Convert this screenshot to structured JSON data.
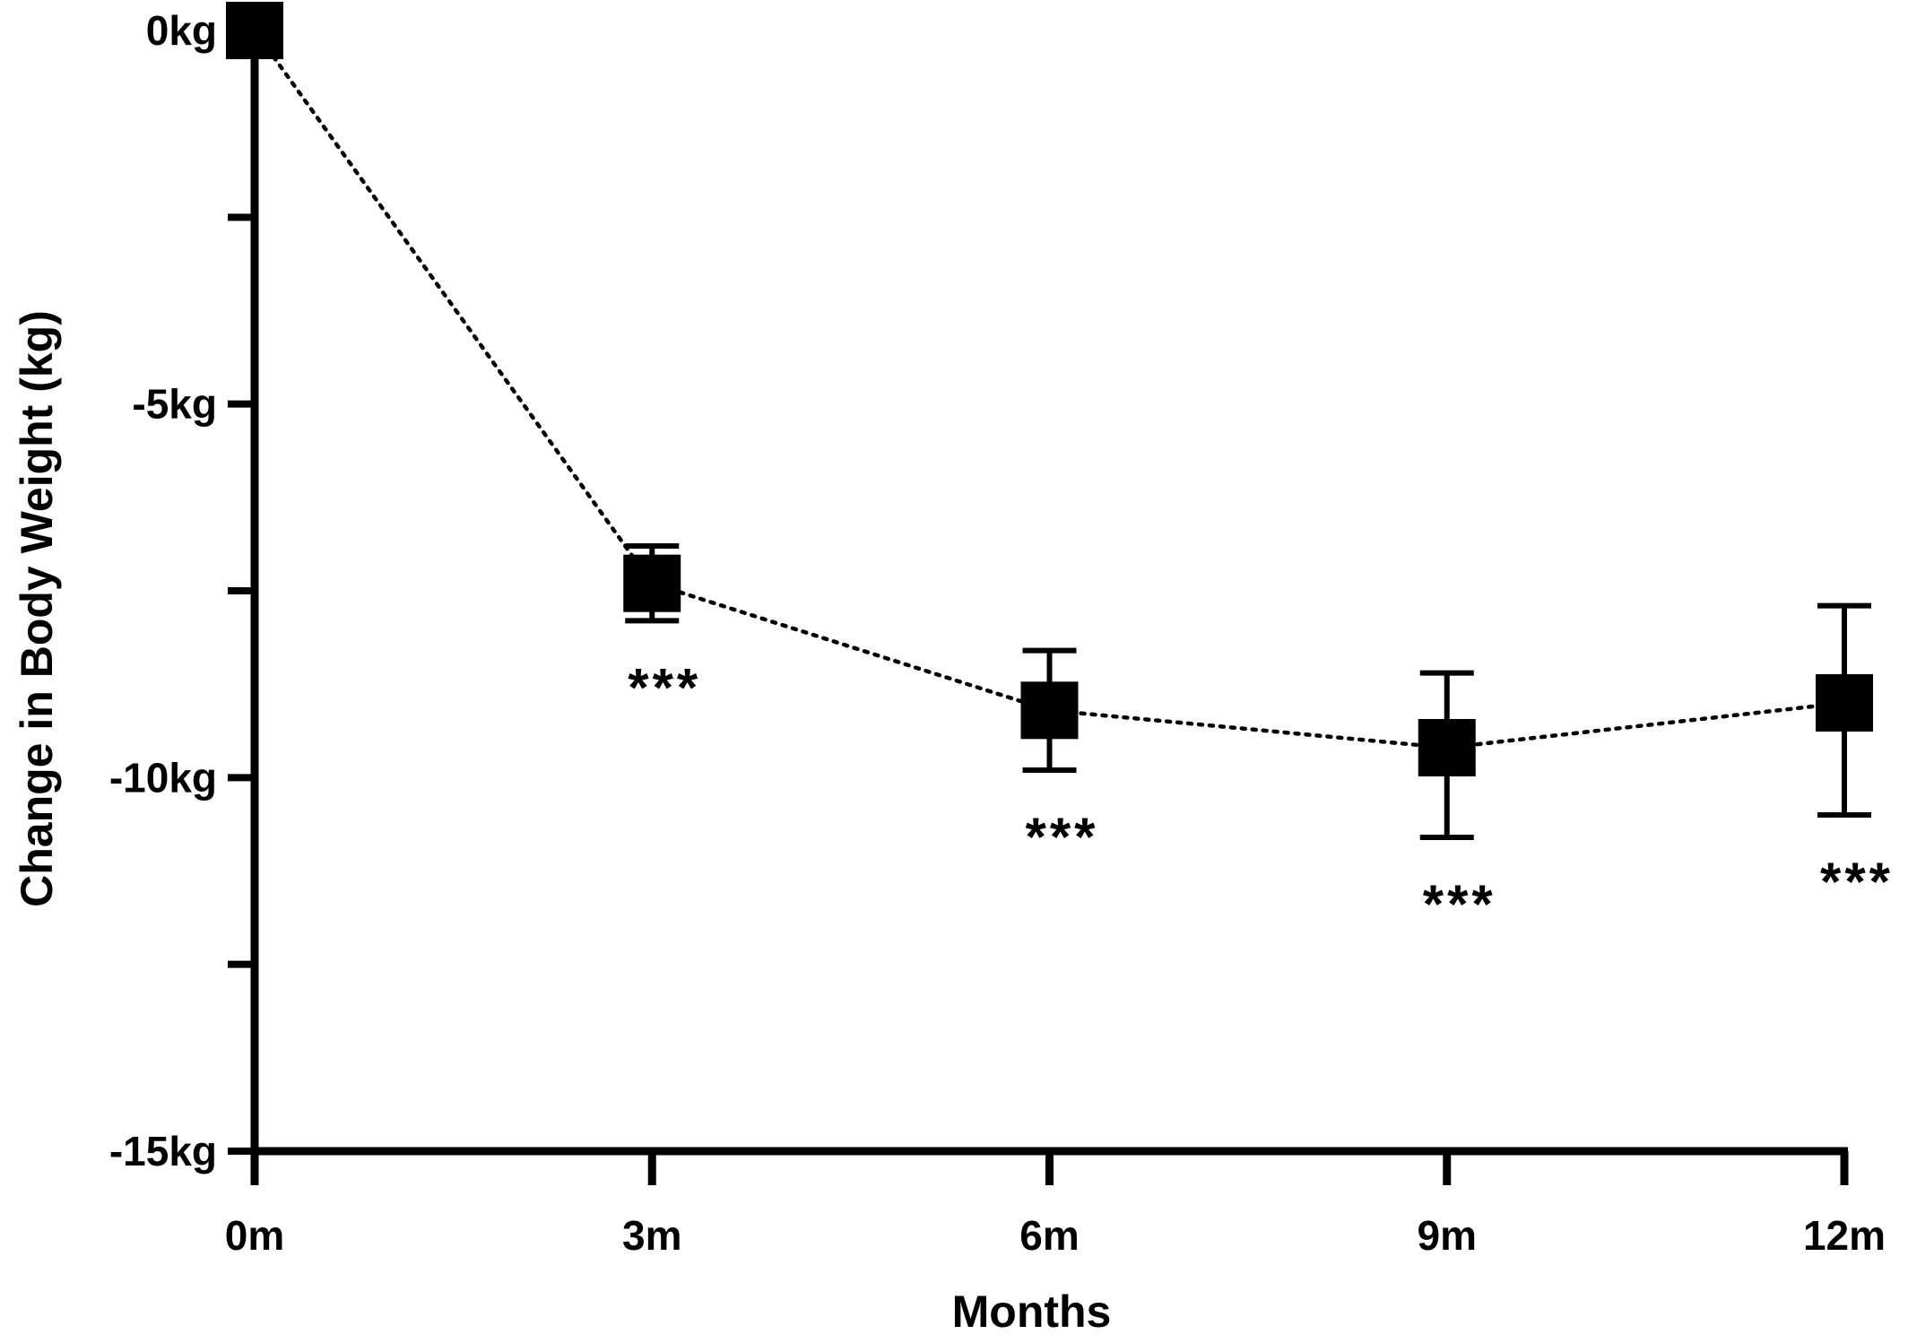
{
  "chart_data": {
    "type": "line",
    "title": "",
    "xlabel": "Months",
    "ylabel": "Change in Body Weight (kg)",
    "x_categories": [
      "0m",
      "3m",
      "6m",
      "9m",
      "12m"
    ],
    "x_values": [
      0,
      3,
      6,
      9,
      12
    ],
    "xlim": [
      0,
      12
    ],
    "ylim": [
      -15,
      0
    ],
    "y_ticks": [
      {
        "value": 0,
        "label": "0kg"
      },
      {
        "value": -2.5,
        "label": ""
      },
      {
        "value": -5,
        "label": "-5kg"
      },
      {
        "value": -7.5,
        "label": ""
      },
      {
        "value": -10,
        "label": "-10kg"
      },
      {
        "value": -12.5,
        "label": ""
      },
      {
        "value": -15,
        "label": "-15kg"
      }
    ],
    "grid": false,
    "line_style": "dotted",
    "marker": "square",
    "series": [
      {
        "values": [
          0,
          -7.4,
          -9.1,
          -9.6,
          -9.0
        ],
        "error_upper": [
          0,
          -6.9,
          -8.3,
          -8.6,
          -7.7
        ],
        "error_lower": [
          0,
          -7.9,
          -9.9,
          -10.8,
          -10.5
        ],
        "significance": [
          "",
          "***",
          "***",
          "***",
          "***"
        ]
      }
    ]
  }
}
